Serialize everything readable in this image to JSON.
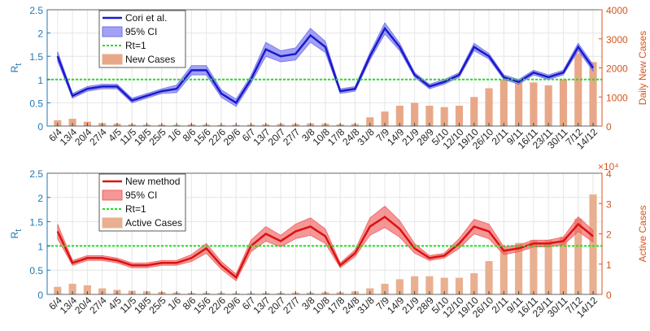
{
  "chart_data": [
    {
      "type": "line",
      "ylabel": "R",
      "ylabel_sub": "t",
      "y2label": "Daily New Cases",
      "categories": [
        "6/4",
        "13/4",
        "20/4",
        "27/4",
        "4/5",
        "11/5",
        "18/5",
        "25/5",
        "1/6",
        "8/6",
        "15/6",
        "22/6",
        "29/6",
        "6/7",
        "13/7",
        "20/7",
        "27/7",
        "3/8",
        "10/8",
        "17/8",
        "24/8",
        "31/8",
        "7/9",
        "14/9",
        "21/9",
        "28/9",
        "5/10",
        "12/10",
        "19/10",
        "26/10",
        "2/11",
        "9/11",
        "16/11",
        "23/11",
        "30/11",
        "7/12",
        "14/12"
      ],
      "ylim": [
        0,
        2.5
      ],
      "yticks": [
        0,
        0.5,
        1,
        1.5,
        2,
        2.5
      ],
      "y2lim": [
        0,
        4000
      ],
      "y2ticks": [
        0,
        1000,
        2000,
        3000,
        4000
      ],
      "grid": true,
      "hline": {
        "name": "Rt=1",
        "value": 1,
        "color": "#22dd22"
      },
      "series": [
        {
          "name": "New Cases",
          "type": "bar",
          "axis": "y2",
          "color": "#e8a888",
          "values": [
            200,
            250,
            150,
            100,
            80,
            60,
            50,
            50,
            40,
            60,
            50,
            40,
            40,
            50,
            60,
            70,
            70,
            90,
            80,
            60,
            70,
            300,
            500,
            700,
            800,
            700,
            650,
            700,
            1000,
            1300,
            1600,
            1500,
            1500,
            1400,
            1600,
            2500,
            2200
          ]
        },
        {
          "name": "95% CI",
          "type": "band",
          "color": "#7070ee",
          "lower": [
            1.4,
            0.6,
            0.75,
            0.8,
            0.8,
            0.5,
            0.6,
            0.7,
            0.72,
            1.1,
            1.1,
            0.62,
            0.42,
            0.92,
            1.5,
            1.38,
            1.42,
            1.8,
            1.58,
            0.7,
            0.75,
            1.42,
            1.98,
            1.62,
            1.05,
            0.8,
            0.9,
            1.05,
            1.62,
            1.44,
            1.0,
            0.9,
            1.1,
            1.0,
            1.1,
            1.62,
            1.18
          ],
          "upper": [
            1.6,
            0.7,
            0.85,
            0.9,
            0.9,
            0.6,
            0.7,
            0.8,
            0.88,
            1.3,
            1.3,
            0.78,
            0.58,
            1.08,
            1.8,
            1.62,
            1.68,
            2.1,
            1.82,
            0.8,
            0.85,
            1.58,
            2.22,
            1.78,
            1.15,
            0.9,
            1.0,
            1.15,
            1.78,
            1.56,
            1.1,
            1.0,
            1.2,
            1.1,
            1.2,
            1.78,
            1.32
          ]
        },
        {
          "name": "Cori et al.",
          "type": "line",
          "color": "#1a1acc",
          "values": [
            1.5,
            0.65,
            0.8,
            0.85,
            0.85,
            0.55,
            0.65,
            0.75,
            0.8,
            1.2,
            1.2,
            0.7,
            0.5,
            1.0,
            1.65,
            1.5,
            1.55,
            1.95,
            1.7,
            0.75,
            0.8,
            1.5,
            2.1,
            1.7,
            1.1,
            0.85,
            0.95,
            1.1,
            1.7,
            1.5,
            1.05,
            0.95,
            1.15,
            1.05,
            1.15,
            1.7,
            1.25
          ]
        }
      ]
    },
    {
      "type": "line",
      "ylabel": "R",
      "ylabel_sub": "t",
      "y2label": "Active Cases",
      "y2_multiplier": "×10⁴",
      "categories": [
        "6/4",
        "13/4",
        "20/4",
        "27/4",
        "4/5",
        "11/5",
        "18/5",
        "25/5",
        "1/6",
        "8/6",
        "15/6",
        "22/6",
        "29/6",
        "6/7",
        "13/7",
        "20/7",
        "27/7",
        "3/8",
        "10/8",
        "17/8",
        "24/8",
        "31/8",
        "7/9",
        "14/9",
        "21/9",
        "28/9",
        "5/10",
        "12/10",
        "19/10",
        "26/10",
        "2/11",
        "9/11",
        "16/11",
        "23/11",
        "30/11",
        "7/12",
        "14/12"
      ],
      "ylim": [
        0,
        2.5
      ],
      "yticks": [
        0,
        0.5,
        1,
        1.5,
        2,
        2.5
      ],
      "y2lim": [
        0,
        4
      ],
      "y2ticks": [
        0,
        1,
        2,
        3,
        4
      ],
      "grid": true,
      "hline": {
        "name": "Rt=1",
        "value": 1,
        "color": "#22dd22"
      },
      "series": [
        {
          "name": "Active Cases",
          "type": "bar",
          "axis": "y2",
          "color": "#e8b090",
          "values": [
            0.25,
            0.35,
            0.3,
            0.2,
            0.15,
            0.12,
            0.1,
            0.08,
            0.06,
            0.05,
            0.05,
            0.05,
            0.04,
            0.04,
            0.05,
            0.05,
            0.06,
            0.06,
            0.07,
            0.07,
            0.1,
            0.2,
            0.35,
            0.5,
            0.6,
            0.6,
            0.55,
            0.55,
            0.7,
            1.1,
            1.5,
            1.7,
            1.8,
            1.8,
            1.9,
            2.5,
            3.3
          ]
        },
        {
          "name": "95% CI",
          "type": "band",
          "color": "#f06060",
          "lower": [
            1.15,
            0.6,
            0.7,
            0.7,
            0.65,
            0.55,
            0.55,
            0.6,
            0.6,
            0.68,
            0.85,
            0.52,
            0.28,
            0.88,
            1.1,
            0.98,
            1.15,
            1.22,
            1.05,
            0.55,
            0.78,
            1.22,
            1.38,
            1.18,
            0.85,
            0.7,
            0.75,
            0.95,
            1.25,
            1.15,
            0.82,
            0.88,
            0.98,
            0.98,
            1.02,
            1.3,
            1.08
          ],
          "upper": [
            1.45,
            0.7,
            0.8,
            0.8,
            0.75,
            0.65,
            0.65,
            0.7,
            0.7,
            0.82,
            1.05,
            0.68,
            0.42,
            1.12,
            1.4,
            1.22,
            1.45,
            1.58,
            1.35,
            0.65,
            0.92,
            1.58,
            1.82,
            1.52,
            1.05,
            0.8,
            0.85,
            1.15,
            1.55,
            1.45,
            0.98,
            1.02,
            1.12,
            1.12,
            1.18,
            1.6,
            1.32
          ]
        },
        {
          "name": "New method",
          "type": "line",
          "color": "#dd1111",
          "values": [
            1.3,
            0.65,
            0.75,
            0.75,
            0.7,
            0.6,
            0.6,
            0.65,
            0.65,
            0.75,
            0.95,
            0.6,
            0.35,
            1.0,
            1.25,
            1.1,
            1.3,
            1.4,
            1.2,
            0.6,
            0.85,
            1.4,
            1.6,
            1.35,
            0.95,
            0.75,
            0.8,
            1.05,
            1.4,
            1.3,
            0.9,
            0.95,
            1.05,
            1.05,
            1.1,
            1.45,
            1.2
          ]
        }
      ]
    }
  ]
}
